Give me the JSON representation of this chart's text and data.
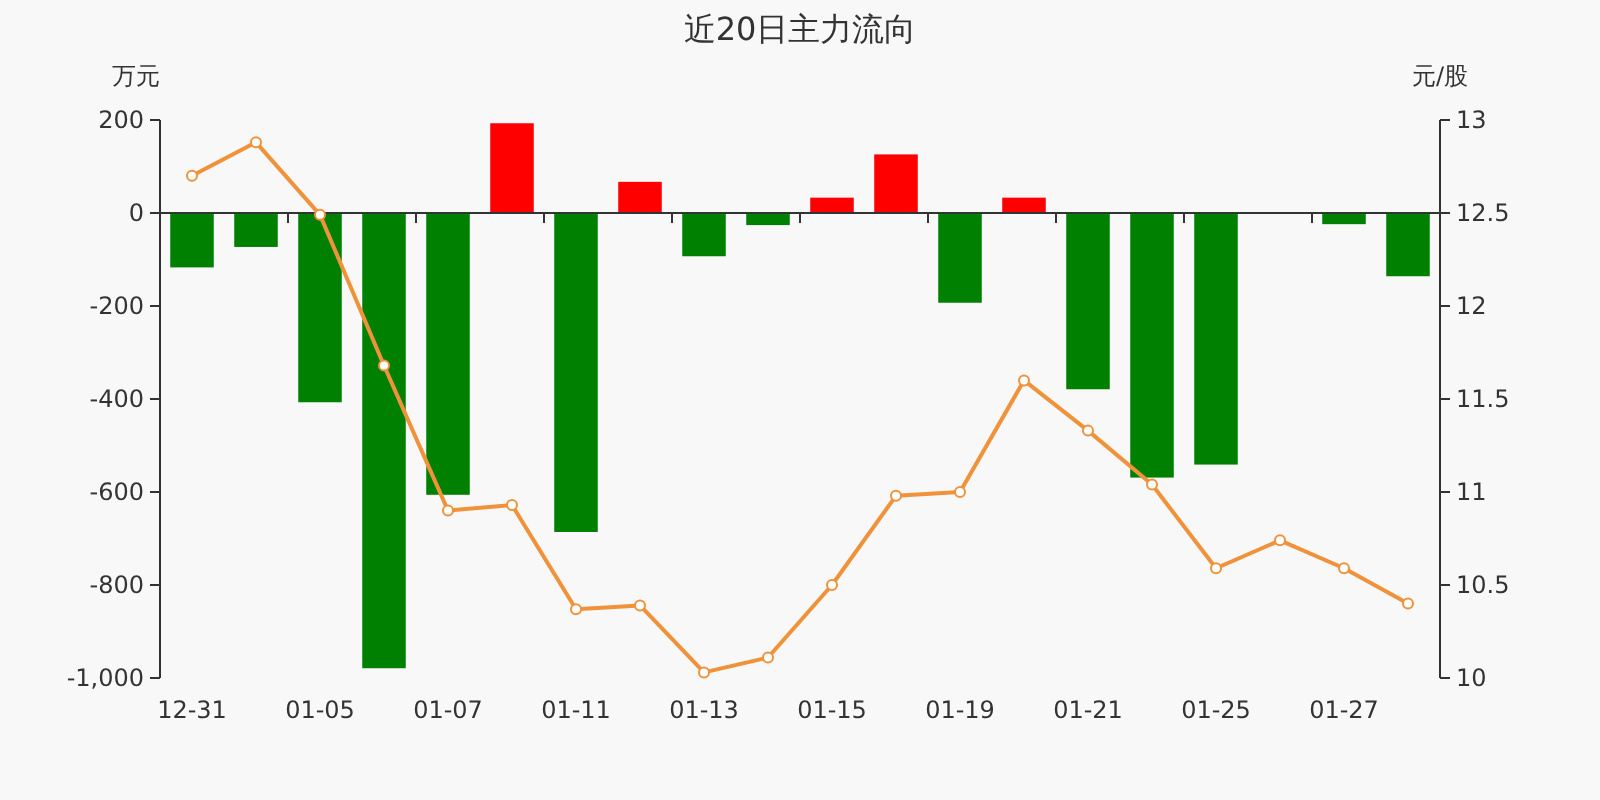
{
  "chart_data": {
    "type": "bar",
    "title": "近20日主力流向",
    "ylabel": "万元",
    "y2label": "元/股",
    "categories": [
      "12-31",
      null,
      "01-05",
      null,
      "01-07",
      null,
      "01-11",
      null,
      "01-13",
      null,
      "01-15",
      null,
      "01-19",
      null,
      "01-21",
      null,
      "01-25",
      null,
      "01-27",
      null
    ],
    "ylim": [
      -1000,
      200
    ],
    "yticks": [
      {
        "value": -1000,
        "label": "-1,000"
      },
      -800,
      -600,
      -400,
      -200,
      0,
      200
    ],
    "y2lim": [
      10,
      13
    ],
    "y2ticks": [
      10,
      10.5,
      11,
      11.5,
      12,
      12.5,
      13
    ],
    "series": [
      {
        "colors": [
          "#008000",
          "#008000",
          "#008000",
          "#008000",
          "#008000",
          "#ff0000",
          "#008000",
          "#ff0000",
          "#008000",
          "#008000",
          "#ff0000",
          "#ff0000",
          "#008000",
          "#ff0000",
          "#008000",
          "#008000",
          "#008000",
          "#008000",
          "#008000",
          "#008000"
        ],
        "values": [
          -117,
          -73,
          -407,
          -979,
          -606,
          193,
          -686,
          67,
          -93,
          -26,
          33,
          126,
          -193,
          33,
          -379,
          -569,
          -541,
          -2,
          -24,
          -136
        ]
      },
      {
        "type": "line",
        "axis": "y2",
        "color": "#f0923a",
        "marker": "circle",
        "values": [
          12.7,
          12.88,
          12.49,
          11.68,
          10.9,
          10.93,
          10.37,
          10.39,
          10.03,
          10.11,
          10.5,
          10.98,
          11.0,
          11.6,
          11.33,
          11.04,
          10.59,
          10.74,
          10.59,
          10.4
        ]
      }
    ]
  }
}
